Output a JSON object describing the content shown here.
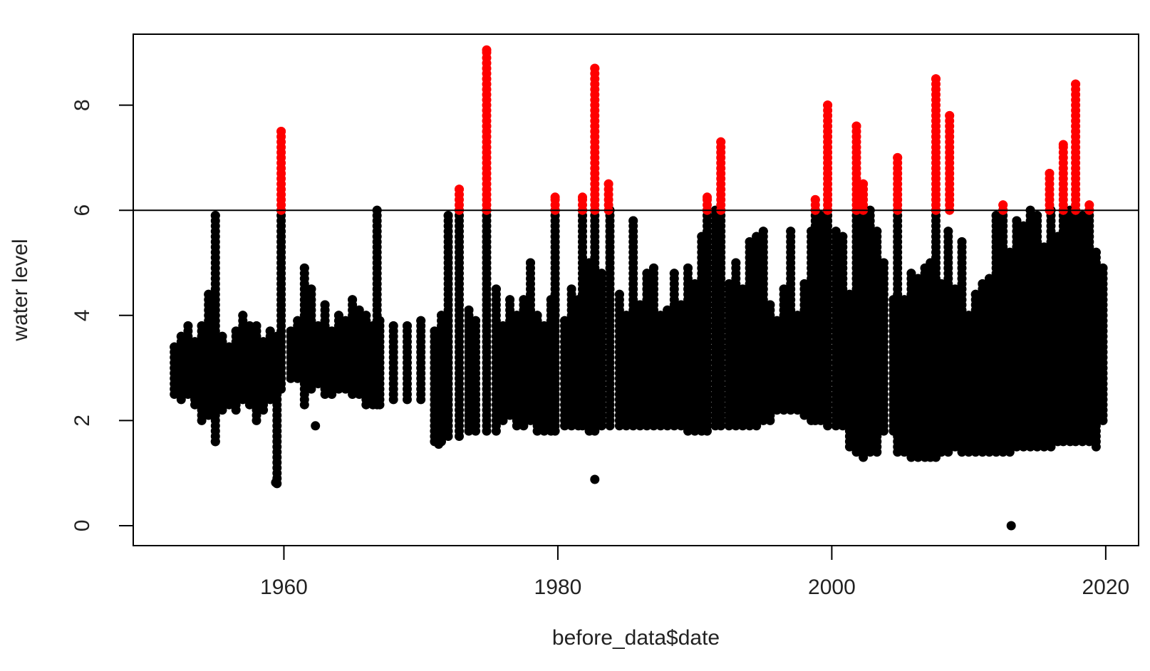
{
  "chart_data": {
    "type": "scatter",
    "title": "",
    "xlabel": "before_data$date",
    "ylabel": "water level",
    "x_ticks": [
      "1960",
      "1980",
      "2000",
      "2020"
    ],
    "y_ticks": [
      "0",
      "2",
      "4",
      "6",
      "8"
    ],
    "xlim": [
      1949.0,
      2022.4
    ],
    "ylim": [
      -0.38,
      9.35
    ],
    "hline": 6,
    "threshold_color": "#000000",
    "colors": {
      "below_threshold": "#000000",
      "above_threshold": "#ff0000"
    },
    "series": [
      {
        "color": "#000000",
        "points": [
          [
            1962.3,
            1.9
          ],
          [
            1982.7,
            0.88
          ],
          [
            2013.1,
            0.0
          ],
          [
            1959.4,
            0.82
          ],
          [
            1971.3,
            1.55
          ],
          [
            1955.0,
            1.6
          ]
        ],
        "ranges": [
          [
            1952.0,
            2.5,
            3.4
          ],
          [
            1952.5,
            2.4,
            3.6
          ],
          [
            1953.0,
            2.5,
            3.8
          ],
          [
            1953.5,
            2.3,
            3.5
          ],
          [
            1954.0,
            2.0,
            3.8
          ],
          [
            1954.5,
            2.1,
            4.4
          ],
          [
            1955.0,
            1.6,
            5.9
          ],
          [
            1955.5,
            2.2,
            3.6
          ],
          [
            1956.0,
            2.3,
            3.4
          ],
          [
            1956.5,
            2.2,
            3.7
          ],
          [
            1957.0,
            2.4,
            4.0
          ],
          [
            1957.5,
            2.3,
            3.8
          ],
          [
            1958.0,
            2.0,
            3.8
          ],
          [
            1958.5,
            2.2,
            3.5
          ],
          [
            1959.0,
            2.4,
            3.7
          ],
          [
            1959.5,
            0.8,
            3.6
          ],
          [
            1959.8,
            2.6,
            6.0
          ],
          [
            1960.5,
            2.8,
            3.7
          ],
          [
            1961.0,
            2.8,
            3.9
          ],
          [
            1961.5,
            2.3,
            4.9
          ],
          [
            1962.0,
            2.6,
            4.5
          ],
          [
            1962.5,
            2.7,
            3.8
          ],
          [
            1963.0,
            2.5,
            4.2
          ],
          [
            1963.5,
            2.5,
            3.7
          ],
          [
            1964.0,
            2.6,
            4.0
          ],
          [
            1964.5,
            2.6,
            3.9
          ],
          [
            1965.0,
            2.5,
            4.3
          ],
          [
            1965.5,
            2.5,
            4.1
          ],
          [
            1966.0,
            2.3,
            4.0
          ],
          [
            1966.5,
            2.3,
            3.8
          ],
          [
            1966.8,
            2.3,
            6.0
          ],
          [
            1967.0,
            2.3,
            3.9
          ],
          [
            1968.0,
            2.4,
            3.8
          ],
          [
            1969.0,
            2.4,
            3.8
          ],
          [
            1970.0,
            2.4,
            3.9
          ],
          [
            1971.0,
            1.6,
            3.7
          ],
          [
            1971.5,
            1.6,
            4.0
          ],
          [
            1972.0,
            1.7,
            5.9
          ],
          [
            1972.8,
            1.7,
            6.0
          ],
          [
            1973.5,
            1.8,
            4.1
          ],
          [
            1974.0,
            1.8,
            3.9
          ],
          [
            1974.8,
            1.8,
            6.0
          ],
          [
            1975.5,
            1.8,
            4.5
          ],
          [
            1976.0,
            2.0,
            3.8
          ],
          [
            1976.5,
            2.1,
            4.3
          ],
          [
            1977.0,
            1.9,
            4.0
          ],
          [
            1977.5,
            1.9,
            4.3
          ],
          [
            1978.0,
            2.0,
            5.0
          ],
          [
            1978.5,
            1.8,
            4.0
          ],
          [
            1979.0,
            1.8,
            3.8
          ],
          [
            1979.5,
            1.8,
            4.3
          ],
          [
            1979.8,
            1.8,
            6.0
          ],
          [
            1980.5,
            1.9,
            3.9
          ],
          [
            1981.0,
            1.9,
            4.5
          ],
          [
            1981.5,
            1.9,
            4.3
          ],
          [
            1981.8,
            1.9,
            6.0
          ],
          [
            1982.3,
            1.8,
            5.0
          ],
          [
            1982.7,
            1.8,
            6.0
          ],
          [
            1983.2,
            1.9,
            4.8
          ],
          [
            1983.8,
            1.9,
            6.0
          ],
          [
            1984.5,
            1.9,
            4.4
          ],
          [
            1985.0,
            1.9,
            4.0
          ],
          [
            1985.5,
            1.9,
            5.8
          ],
          [
            1986.0,
            1.9,
            4.2
          ],
          [
            1986.5,
            1.9,
            4.8
          ],
          [
            1987.0,
            1.9,
            4.9
          ],
          [
            1987.5,
            1.9,
            4.0
          ],
          [
            1988.0,
            1.9,
            4.1
          ],
          [
            1988.5,
            1.9,
            4.8
          ],
          [
            1989.0,
            1.9,
            4.2
          ],
          [
            1989.5,
            1.8,
            4.9
          ],
          [
            1990.0,
            1.8,
            4.6
          ],
          [
            1990.5,
            1.8,
            5.5
          ],
          [
            1990.9,
            1.8,
            6.0
          ],
          [
            1991.5,
            1.9,
            6.0
          ],
          [
            1991.9,
            1.9,
            6.0
          ],
          [
            1992.5,
            1.9,
            4.6
          ],
          [
            1993.0,
            1.9,
            5.0
          ],
          [
            1993.5,
            1.9,
            4.5
          ],
          [
            1994.0,
            1.9,
            5.4
          ],
          [
            1994.5,
            1.9,
            5.5
          ],
          [
            1995.0,
            2.0,
            5.6
          ],
          [
            1995.5,
            2.0,
            4.2
          ],
          [
            1996.0,
            2.2,
            3.9
          ],
          [
            1996.5,
            2.2,
            4.5
          ],
          [
            1997.0,
            2.2,
            5.6
          ],
          [
            1997.5,
            2.2,
            4.0
          ],
          [
            1998.0,
            2.1,
            4.6
          ],
          [
            1998.5,
            2.0,
            5.6
          ],
          [
            1998.8,
            2.0,
            6.0
          ],
          [
            1999.2,
            2.0,
            5.9
          ],
          [
            1999.7,
            1.9,
            6.0
          ],
          [
            2000.3,
            1.9,
            5.6
          ],
          [
            2000.8,
            1.9,
            5.5
          ],
          [
            2001.3,
            1.5,
            4.4
          ],
          [
            2001.8,
            1.4,
            6.0
          ],
          [
            2002.3,
            1.3,
            6.0
          ],
          [
            2002.8,
            1.4,
            6.0
          ],
          [
            2003.3,
            1.4,
            5.6
          ],
          [
            2003.8,
            1.8,
            5.0
          ],
          [
            2004.5,
            1.8,
            4.3
          ],
          [
            2004.8,
            1.4,
            6.0
          ],
          [
            2005.3,
            1.4,
            4.3
          ],
          [
            2005.8,
            1.3,
            4.8
          ],
          [
            2006.3,
            1.3,
            4.7
          ],
          [
            2006.8,
            1.3,
            4.9
          ],
          [
            2007.2,
            1.3,
            5.0
          ],
          [
            2007.6,
            1.3,
            6.0
          ],
          [
            2008.0,
            1.4,
            4.6
          ],
          [
            2008.5,
            1.4,
            5.6
          ],
          [
            2009.0,
            1.5,
            4.5
          ],
          [
            2009.5,
            1.4,
            5.4
          ],
          [
            2010.0,
            1.4,
            4.0
          ],
          [
            2010.5,
            1.4,
            4.4
          ],
          [
            2011.0,
            1.4,
            4.6
          ],
          [
            2011.5,
            1.4,
            4.7
          ],
          [
            2012.0,
            1.4,
            5.9
          ],
          [
            2012.5,
            1.4,
            6.0
          ],
          [
            2013.0,
            1.4,
            5.2
          ],
          [
            2013.5,
            1.5,
            5.8
          ],
          [
            2014.0,
            1.5,
            5.7
          ],
          [
            2014.5,
            1.5,
            6.0
          ],
          [
            2015.0,
            1.5,
            5.9
          ],
          [
            2015.5,
            1.5,
            5.3
          ],
          [
            2016.0,
            1.5,
            6.0
          ],
          [
            2016.5,
            1.6,
            5.5
          ],
          [
            2016.9,
            1.6,
            6.0
          ],
          [
            2017.4,
            1.6,
            6.0
          ],
          [
            2017.8,
            1.6,
            6.0
          ],
          [
            2018.3,
            1.6,
            5.9
          ],
          [
            2018.8,
            1.6,
            6.0
          ],
          [
            2019.3,
            1.5,
            5.2
          ],
          [
            2019.8,
            2.0,
            4.9
          ]
        ]
      },
      {
        "color": "#ff0000",
        "ranges": [
          [
            1959.8,
            6.0,
            7.5
          ],
          [
            1972.8,
            6.0,
            6.4
          ],
          [
            1974.8,
            6.0,
            9.05
          ],
          [
            1979.8,
            6.0,
            6.25
          ],
          [
            1981.8,
            6.0,
            6.25
          ],
          [
            1982.7,
            6.0,
            8.7
          ],
          [
            1983.7,
            6.0,
            6.5
          ],
          [
            1990.9,
            6.0,
            6.25
          ],
          [
            1991.9,
            6.0,
            7.3
          ],
          [
            1998.8,
            6.0,
            6.2
          ],
          [
            1999.7,
            6.0,
            8.0
          ],
          [
            2001.8,
            6.0,
            7.6
          ],
          [
            2002.3,
            6.0,
            6.5
          ],
          [
            2004.8,
            6.0,
            7.0
          ],
          [
            2007.6,
            6.0,
            8.5
          ],
          [
            2008.6,
            6.0,
            7.8
          ],
          [
            2012.5,
            6.0,
            6.1
          ],
          [
            2015.9,
            6.0,
            6.7
          ],
          [
            2016.9,
            6.0,
            7.25
          ],
          [
            2017.8,
            6.0,
            8.4
          ],
          [
            2018.8,
            6.0,
            6.1
          ]
        ]
      }
    ]
  }
}
